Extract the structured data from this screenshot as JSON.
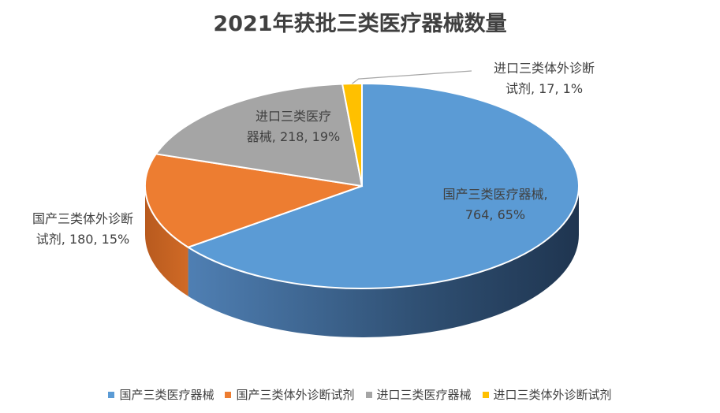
{
  "chart_data": {
    "type": "pie",
    "title": "2021年获批三类医疗器械数量",
    "slices": [
      {
        "name": "国产三类医疗器械",
        "value": 764,
        "percent": "65%",
        "color": "#5b9bd5",
        "label_lines": [
          "国产三类医疗器械,",
          "764, 65%"
        ]
      },
      {
        "name": "国产三类体外诊断试剂",
        "value": 180,
        "percent": "15%",
        "color": "#ed7d31",
        "label_lines": [
          "国产三类体外诊断",
          "试剂, 180, 15%"
        ]
      },
      {
        "name": "进口三类医疗器械",
        "value": 218,
        "percent": "19%",
        "color": "#a5a5a5",
        "label_lines": [
          "进口三类医疗",
          "器械, 218, 19%"
        ]
      },
      {
        "name": "进口三类体外诊断试剂",
        "value": 17,
        "percent": "1%",
        "color": "#ffc000",
        "label_lines": [
          "进口三类体外诊断",
          "试剂, 17, 1%"
        ]
      }
    ],
    "legend_position": "bottom"
  }
}
